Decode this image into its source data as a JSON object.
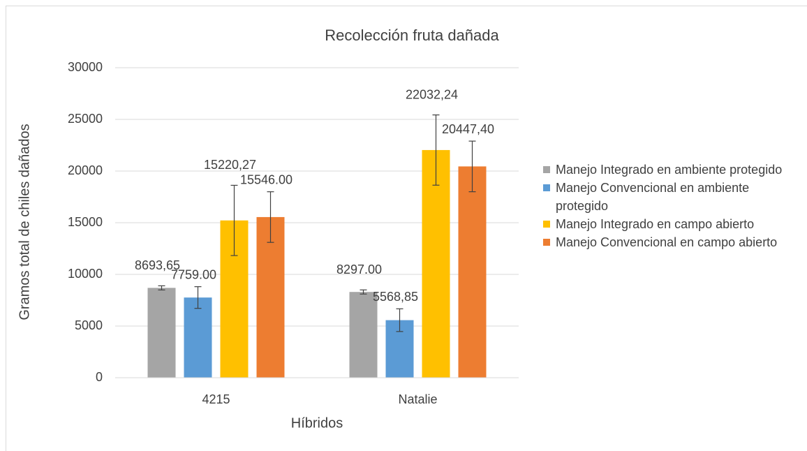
{
  "chart_data": {
    "type": "bar",
    "title": "Recolección fruta dañada",
    "x_label": "Híbridos",
    "y_label": "Gramos total de chiles dañados",
    "categories": [
      "4215",
      "Natalie"
    ],
    "series": [
      {
        "name": "Manejo Integrado en ambiente protegido",
        "color": "#a5a5a5",
        "values": [
          8693.65,
          8297.0
        ],
        "value_labels": [
          "8693,65",
          "8297.00"
        ],
        "errors": [
          200,
          200
        ]
      },
      {
        "name": "Manejo Convencional en ambiente protegido",
        "color": "#5b9bd5",
        "values": [
          7759.0,
          5568.85
        ],
        "value_labels": [
          "7759.00",
          "5568,85"
        ],
        "errors": [
          1050,
          1100
        ]
      },
      {
        "name": "Manejo Integrado en campo abierto",
        "color": "#ffc000",
        "values": [
          15220.27,
          22032.24
        ],
        "value_labels": [
          "15220,27",
          "22032,24"
        ],
        "errors": [
          3400,
          3400
        ]
      },
      {
        "name": "Manejo Convencional en campo abierto",
        "color": "#ed7d31",
        "values": [
          15546.0,
          20447.4
        ],
        "value_labels": [
          "15546.00",
          "20447,40"
        ],
        "errors": [
          2450,
          2450
        ]
      }
    ],
    "ylim": [
      0,
      30000
    ],
    "yticks": [
      0,
      5000,
      10000,
      15000,
      20000,
      25000,
      30000
    ],
    "grid": true,
    "legend": "right"
  }
}
